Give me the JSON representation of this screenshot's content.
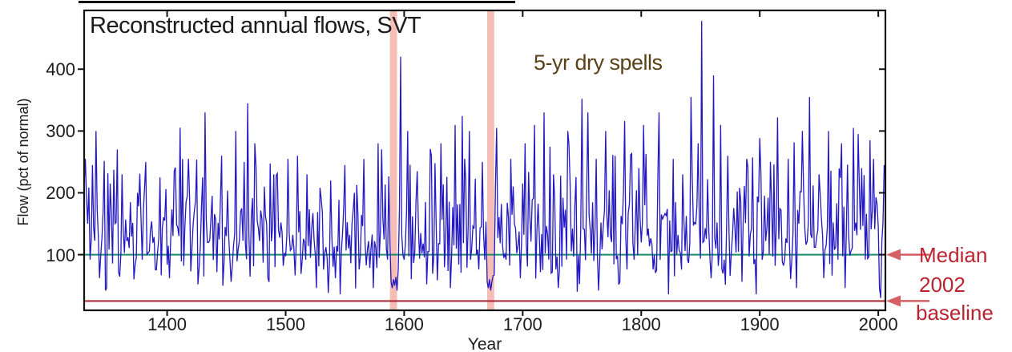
{
  "colors": {
    "background": "#ffffff",
    "series_line": "#2318c2",
    "median_line": "#1e8a6e",
    "baseline_line": "#a8303c",
    "band_fill": "#f2b2a8",
    "annotation_red_text": "#bb2330",
    "dry_spell_text": "#5a4118",
    "arrow": "#d45f64",
    "axis_box": "#111111",
    "text": "#1b1b1b"
  },
  "chart_data": {
    "type": "line",
    "title": "Reconstructed annual flows, SVT",
    "xlabel": "Year",
    "ylabel": "Flow (pct of normal)",
    "xlim": [
      1330,
      2006
    ],
    "ylim": [
      10,
      495
    ],
    "xticks": [
      1400,
      1500,
      1600,
      1700,
      1800,
      1900,
      2000
    ],
    "yticks": [
      100,
      200,
      300,
      400
    ],
    "grid": false,
    "legend": "none",
    "annotations": {
      "dry_spells": "5-yr dry spells",
      "median": "Median",
      "baseline_line1": "2002",
      "baseline_line2": "baseline",
      "baseline_full": "2002 baseline"
    },
    "median_line": {
      "value": 100,
      "label": "Median"
    },
    "baseline": {
      "value": 25,
      "label": "2002 baseline",
      "year": 2002
    },
    "dry_spell_bands": [
      {
        "start_year": 1588,
        "end_year": 1594
      },
      {
        "start_year": 1670,
        "end_year": 1676
      }
    ],
    "series": {
      "name": "Reconstructed annual flow",
      "unit": "pct of normal",
      "start_year": 1330,
      "end_year": 2005,
      "note": "dense annual trace; values below are eyeball-read anchor points, remaining years filled by seeded lognormal noise to match the visual texture",
      "noise": {
        "seed": 20020,
        "log_median": 130,
        "log_sd": 0.38,
        "clamp_min": 38,
        "clamp_max": 330
      },
      "anchor_points": [
        [
          1331,
          255
        ],
        [
          1333,
          150
        ],
        [
          1335,
          92
        ],
        [
          1337,
          245
        ],
        [
          1340,
          300
        ],
        [
          1343,
          62
        ],
        [
          1346,
          170
        ],
        [
          1349,
          46
        ],
        [
          1352,
          215
        ],
        [
          1356,
          150
        ],
        [
          1359,
          72
        ],
        [
          1362,
          230
        ],
        [
          1366,
          122
        ],
        [
          1369,
          185
        ],
        [
          1372,
          60
        ],
        [
          1375,
          200
        ],
        [
          1379,
          92
        ],
        [
          1382,
          250
        ],
        [
          1386,
          140
        ],
        [
          1390,
          76
        ],
        [
          1394,
          225
        ],
        [
          1398,
          155
        ],
        [
          1402,
          62
        ],
        [
          1406,
          235
        ],
        [
          1410,
          130
        ],
        [
          1414,
          82
        ],
        [
          1418,
          255
        ],
        [
          1422,
          150
        ],
        [
          1426,
          52
        ],
        [
          1430,
          225
        ],
        [
          1434,
          120
        ],
        [
          1438,
          195
        ],
        [
          1442,
          72
        ],
        [
          1446,
          260
        ],
        [
          1450,
          130
        ],
        [
          1454,
          56
        ],
        [
          1458,
          300
        ],
        [
          1462,
          170
        ],
        [
          1465,
          250
        ],
        [
          1468,
          345
        ],
        [
          1471,
          160
        ],
        [
          1474,
          280
        ],
        [
          1478,
          122
        ],
        [
          1482,
          210
        ],
        [
          1486,
          56
        ],
        [
          1490,
          230
        ],
        [
          1494,
          140
        ],
        [
          1498,
          82
        ],
        [
          1502,
          255
        ],
        [
          1506,
          132
        ],
        [
          1510,
          260
        ],
        [
          1514,
          92
        ],
        [
          1518,
          230
        ],
        [
          1522,
          142
        ],
        [
          1526,
          46
        ],
        [
          1530,
          190
        ],
        [
          1534,
          112
        ],
        [
          1538,
          220
        ],
        [
          1542,
          62
        ],
        [
          1546,
          36
        ],
        [
          1550,
          245
        ],
        [
          1554,
          132
        ],
        [
          1558,
          200
        ],
        [
          1562,
          76
        ],
        [
          1566,
          255
        ],
        [
          1570,
          122
        ],
        [
          1574,
          46
        ],
        [
          1578,
          280
        ],
        [
          1582,
          160
        ],
        [
          1586,
          92
        ],
        [
          1589,
          56
        ],
        [
          1590,
          46
        ],
        [
          1591,
          60
        ],
        [
          1592,
          50
        ],
        [
          1593,
          64
        ],
        [
          1594,
          42
        ],
        [
          1597,
          420
        ],
        [
          1600,
          92
        ],
        [
          1603,
          300
        ],
        [
          1607,
          162
        ],
        [
          1611,
          235
        ],
        [
          1615,
          102
        ],
        [
          1619,
          52
        ],
        [
          1623,
          260
        ],
        [
          1627,
          152
        ],
        [
          1631,
          280
        ],
        [
          1635,
          122
        ],
        [
          1639,
          46
        ],
        [
          1643,
          310
        ],
        [
          1647,
          182
        ],
        [
          1651,
          255
        ],
        [
          1655,
          300
        ],
        [
          1659,
          142
        ],
        [
          1663,
          76
        ],
        [
          1666,
          250
        ],
        [
          1670,
          56
        ],
        [
          1671,
          46
        ],
        [
          1672,
          60
        ],
        [
          1673,
          42
        ],
        [
          1674,
          56
        ],
        [
          1675,
          66
        ],
        [
          1678,
          305
        ],
        [
          1682,
          182
        ],
        [
          1686,
          92
        ],
        [
          1690,
          255
        ],
        [
          1694,
          142
        ],
        [
          1698,
          62
        ],
        [
          1702,
          280
        ],
        [
          1706,
          162
        ],
        [
          1710,
          310
        ],
        [
          1714,
          132
        ],
        [
          1718,
          330
        ],
        [
          1722,
          92
        ],
        [
          1726,
          230
        ],
        [
          1730,
          46
        ],
        [
          1734,
          192
        ],
        [
          1738,
          300
        ],
        [
          1742,
          142
        ],
        [
          1746,
          40
        ],
        [
          1750,
          352
        ],
        [
          1754,
          202
        ],
        [
          1758,
          102
        ],
        [
          1762,
          255
        ],
        [
          1766,
          152
        ],
        [
          1770,
          300
        ],
        [
          1774,
          132
        ],
        [
          1778,
          260
        ],
        [
          1782,
          56
        ],
        [
          1786,
          316
        ],
        [
          1790,
          182
        ],
        [
          1794,
          92
        ],
        [
          1798,
          240
        ],
        [
          1802,
          310
        ],
        [
          1806,
          142
        ],
        [
          1810,
          76
        ],
        [
          1815,
          330
        ],
        [
          1819,
          162
        ],
        [
          1823,
          36
        ],
        [
          1827,
          255
        ],
        [
          1831,
          132
        ],
        [
          1835,
          230
        ],
        [
          1839,
          92
        ],
        [
          1842,
          355
        ],
        [
          1845,
          152
        ],
        [
          1848,
          280
        ],
        [
          1851,
          478
        ],
        [
          1853,
          122
        ],
        [
          1856,
          222
        ],
        [
          1859,
          62
        ],
        [
          1861,
          390
        ],
        [
          1864,
          152
        ],
        [
          1867,
          310
        ],
        [
          1870,
          92
        ],
        [
          1873,
          260
        ],
        [
          1877,
          132
        ],
        [
          1881,
          202
        ],
        [
          1885,
          56
        ],
        [
          1889,
          255
        ],
        [
          1893,
          142
        ],
        [
          1897,
          36
        ],
        [
          1901,
          230
        ],
        [
          1905,
          122
        ],
        [
          1909,
          250
        ],
        [
          1913,
          82
        ],
        [
          1915,
          322
        ],
        [
          1918,
          172
        ],
        [
          1921,
          92
        ],
        [
          1924,
          255
        ],
        [
          1928,
          132
        ],
        [
          1931,
          46
        ],
        [
          1934,
          202
        ],
        [
          1938,
          142
        ],
        [
          1942,
          355
        ],
        [
          1946,
          112
        ],
        [
          1950,
          230
        ],
        [
          1954,
          62
        ],
        [
          1958,
          300
        ],
        [
          1962,
          152
        ],
        [
          1966,
          92
        ],
        [
          1969,
          280
        ],
        [
          1972,
          46
        ],
        [
          1975,
          132
        ],
        [
          1979,
          305
        ],
        [
          1981,
          152
        ],
        [
          1983,
          295
        ],
        [
          1986,
          240
        ],
        [
          1989,
          92
        ],
        [
          1993,
          285
        ],
        [
          1996,
          255
        ],
        [
          1999,
          182
        ],
        [
          2001,
          46
        ],
        [
          2002,
          30
        ],
        [
          2004,
          152
        ],
        [
          2005,
          245
        ]
      ]
    }
  }
}
